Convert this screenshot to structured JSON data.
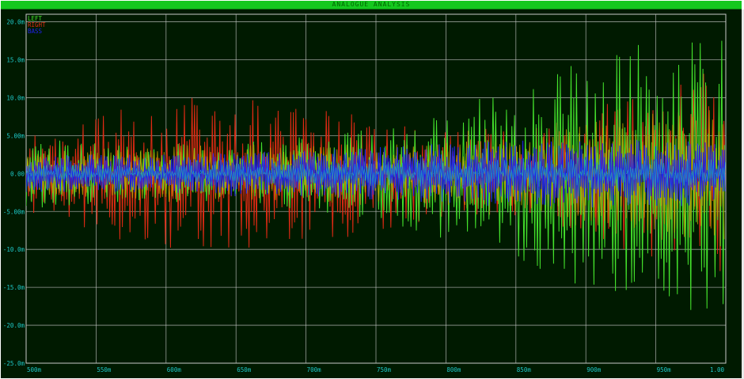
{
  "window": {
    "title": "ANALOGUE ANALYSIS"
  },
  "chart_data": {
    "type": "line",
    "title": "ANALOGUE ANALYSIS",
    "xlabel": "",
    "ylabel": "",
    "xlim": [
      0.5,
      1.0
    ],
    "ylim": [
      -0.025,
      0.021
    ],
    "grid": true,
    "legend_position": "top-left",
    "x_ticks": [
      {
        "value": 0.5,
        "label": "500m"
      },
      {
        "value": 0.55,
        "label": "550m"
      },
      {
        "value": 0.6,
        "label": "600m"
      },
      {
        "value": 0.65,
        "label": "650m"
      },
      {
        "value": 0.7,
        "label": "700m"
      },
      {
        "value": 0.75,
        "label": "750m"
      },
      {
        "value": 0.8,
        "label": "800m"
      },
      {
        "value": 0.85,
        "label": "850m"
      },
      {
        "value": 0.9,
        "label": "900m"
      },
      {
        "value": 0.95,
        "label": "950m"
      },
      {
        "value": 1.0,
        "label": "1.00"
      }
    ],
    "y_ticks": [
      {
        "value": 0.02,
        "label": "20.0m"
      },
      {
        "value": 0.015,
        "label": "15.0m"
      },
      {
        "value": 0.01,
        "label": "10.0m"
      },
      {
        "value": 0.005,
        "label": "5.00m"
      },
      {
        "value": 0.0,
        "label": "0.00"
      },
      {
        "value": -0.005,
        "label": "-5.00m"
      },
      {
        "value": -0.01,
        "label": "-10.0m"
      },
      {
        "value": -0.015,
        "label": "-15.0m"
      },
      {
        "value": -0.02,
        "label": "-20.0m"
      },
      {
        "value": -0.025,
        "label": "-25.0m"
      }
    ],
    "series": [
      {
        "name": "LEFT",
        "color": "#44e22c",
        "envelope_x": [
          0.5,
          0.55,
          0.6,
          0.65,
          0.7,
          0.75,
          0.8,
          0.85,
          0.9,
          0.95,
          1.0
        ],
        "envelope_amplitude": [
          0.005,
          0.004,
          0.004,
          0.004,
          0.005,
          0.006,
          0.009,
          0.011,
          0.016,
          0.018,
          0.018
        ]
      },
      {
        "name": "RIGHT",
        "color": "#e02a14",
        "envelope_x": [
          0.5,
          0.55,
          0.6,
          0.65,
          0.7,
          0.75,
          0.8,
          0.85,
          0.9,
          0.95,
          1.0
        ],
        "envelope_amplitude": [
          0.005,
          0.008,
          0.01,
          0.01,
          0.009,
          0.008,
          0.006,
          0.006,
          0.008,
          0.012,
          0.014
        ]
      },
      {
        "name": "BASS",
        "color": "#2020ee",
        "envelope_x": [
          0.5,
          0.55,
          0.6,
          0.65,
          0.7,
          0.75,
          0.8,
          0.85,
          0.9,
          0.95,
          1.0
        ],
        "envelope_amplitude": [
          0.0025,
          0.0025,
          0.0025,
          0.003,
          0.003,
          0.0035,
          0.004,
          0.0045,
          0.0045,
          0.0045,
          0.004
        ]
      }
    ],
    "colors": {
      "background": "#001a00",
      "grid": "#c8c8c8",
      "tick_label": "#1ec8c8",
      "mix_overlay": "#c8a000",
      "center_overlay": "#1ea0c8"
    }
  }
}
